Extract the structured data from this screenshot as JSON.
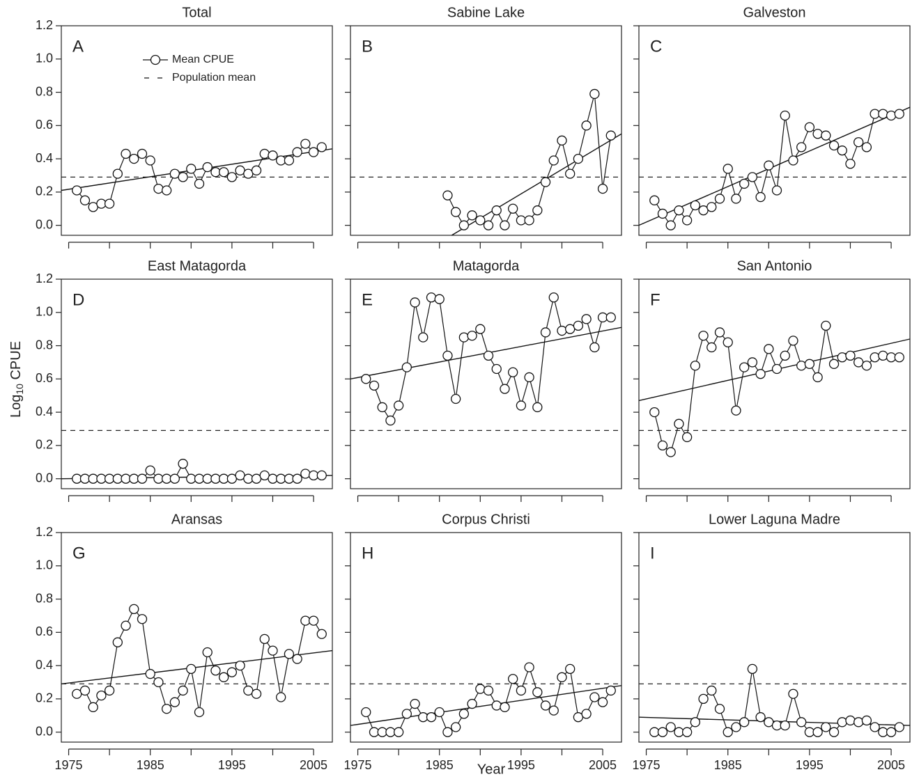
{
  "xlabel": "Year",
  "ylabel": {
    "text": "Log",
    "sub": "10",
    "rest": " CPUE"
  },
  "chart_data": [
    {
      "type": "line",
      "title": "Total",
      "label": "A",
      "legend": "upper-left",
      "x": [
        1976,
        1977,
        1978,
        1979,
        1980,
        1981,
        1982,
        1983,
        1984,
        1985,
        1986,
        1987,
        1988,
        1989,
        1990,
        1991,
        1992,
        1993,
        1994,
        1995,
        1996,
        1997,
        1998,
        1999,
        2000,
        2001,
        2002,
        2003,
        2004,
        2005,
        2006
      ],
      "series": [
        {
          "name": "Mean CPUE",
          "values": [
            0.21,
            0.15,
            0.11,
            0.13,
            0.13,
            0.31,
            0.43,
            0.4,
            0.43,
            0.39,
            0.22,
            0.21,
            0.31,
            0.29,
            0.34,
            0.25,
            0.35,
            0.32,
            0.32,
            0.29,
            0.33,
            0.31,
            0.33,
            0.43,
            0.42,
            0.39,
            0.39,
            0.44,
            0.49,
            0.44,
            0.47
          ]
        }
      ],
      "trend": {
        "x": [
          1974.1,
          2007.3
        ],
        "values": [
          0.21,
          0.46
        ]
      },
      "reference_line": {
        "name": "Population mean",
        "value": 0.29
      },
      "xlim": [
        1974.1,
        2007.3
      ],
      "ylim": [
        -0.06,
        1.2
      ],
      "xticks": [
        1975,
        1985,
        1995,
        2005
      ],
      "xminor": [
        1980,
        1990,
        2000
      ],
      "yticks": [
        {
          "value": 0,
          "label": "0.0"
        },
        0.2,
        0.4,
        0.6,
        0.8,
        {
          "value": 1,
          "label": "1.0"
        },
        1.2
      ]
    },
    {
      "type": "line",
      "title": "Sabine Lake",
      "label": "B",
      "x": [
        1986,
        1987,
        1988,
        1989,
        1990,
        1991,
        1992,
        1993,
        1994,
        1995,
        1996,
        1997,
        1998,
        1999,
        2000,
        2001,
        2002,
        2003,
        2004,
        2005,
        2006
      ],
      "series": [
        {
          "values": [
            0.18,
            0.08,
            0,
            0.06,
            0.03,
            0,
            0.09,
            0,
            0.1,
            0.03,
            0.03,
            0.09,
            0.26,
            0.39,
            0.51,
            0.31,
            0.4,
            0.6,
            0.79,
            0.22,
            0.54
          ]
        }
      ],
      "trend": {
        "x": [
          1986.5,
          2007.3
        ],
        "values": [
          -0.06,
          0.55
        ]
      },
      "reference_line": {
        "value": 0.29
      },
      "xlim": [
        1974.1,
        2007.3
      ],
      "ylim": [
        -0.06,
        1.2
      ],
      "xticks": [
        1975,
        1985,
        1995,
        2005
      ],
      "xminor": [
        1980,
        1990,
        2000
      ],
      "yticks": [
        {
          "value": 0,
          "label": "0.0"
        },
        0.2,
        0.4,
        0.6,
        0.8,
        {
          "value": 1,
          "label": "1.0"
        },
        1.2
      ]
    },
    {
      "type": "line",
      "title": "Galveston",
      "label": "C",
      "x": [
        1976,
        1977,
        1978,
        1979,
        1980,
        1981,
        1982,
        1983,
        1984,
        1985,
        1986,
        1987,
        1988,
        1989,
        1990,
        1991,
        1992,
        1993,
        1994,
        1995,
        1996,
        1997,
        1998,
        1999,
        2000,
        2001,
        2002,
        2003,
        2004,
        2005,
        2006
      ],
      "series": [
        {
          "values": [
            0.15,
            0.07,
            0,
            0.09,
            0.03,
            0.12,
            0.09,
            0.11,
            0.16,
            0.34,
            0.16,
            0.25,
            0.29,
            0.17,
            0.36,
            0.21,
            0.66,
            0.39,
            0.47,
            0.59,
            0.55,
            0.54,
            0.48,
            0.45,
            0.37,
            0.5,
            0.47,
            0.67,
            0.67,
            0.66,
            0.67
          ]
        }
      ],
      "trend": {
        "x": [
          1974.1,
          2007.3
        ],
        "values": [
          0,
          0.71
        ]
      },
      "reference_line": {
        "value": 0.29
      },
      "xlim": [
        1974.1,
        2007.3
      ],
      "ylim": [
        -0.06,
        1.2
      ],
      "xticks": [
        1975,
        1985,
        1995,
        2005
      ],
      "xminor": [
        1980,
        1990,
        2000
      ],
      "yticks": [
        {
          "value": 0,
          "label": "0.0"
        },
        0.2,
        0.4,
        0.6,
        0.8,
        {
          "value": 1,
          "label": "1.0"
        },
        1.2
      ]
    },
    {
      "type": "line",
      "title": "East Matagorda",
      "label": "D",
      "x": [
        1976,
        1977,
        1978,
        1979,
        1980,
        1981,
        1982,
        1983,
        1984,
        1985,
        1986,
        1987,
        1988,
        1989,
        1990,
        1991,
        1992,
        1993,
        1994,
        1995,
        1996,
        1997,
        1998,
        1999,
        2000,
        2001,
        2002,
        2003,
        2004,
        2005,
        2006
      ],
      "series": [
        {
          "values": [
            0,
            0,
            0,
            0,
            0,
            0,
            0,
            0,
            0,
            0.05,
            0,
            0,
            0,
            0.09,
            0,
            0,
            0,
            0,
            0,
            0,
            0.02,
            0,
            0,
            0.02,
            0,
            0,
            0,
            0,
            0.03,
            0.02,
            0.02
          ]
        }
      ],
      "trend": {
        "x": [
          1974.1,
          2007.3
        ],
        "values": [
          0,
          0.02
        ]
      },
      "reference_line": {
        "value": 0.29
      },
      "xlim": [
        1974.1,
        2007.3
      ],
      "ylim": [
        -0.06,
        1.2
      ],
      "xticks": [
        1975,
        1985,
        1995,
        2005
      ],
      "xminor": [
        1980,
        1990,
        2000
      ],
      "yticks": [
        {
          "value": 0,
          "label": "0.0"
        },
        0.2,
        0.4,
        0.6,
        0.8,
        {
          "value": 1,
          "label": "1.0"
        },
        1.2
      ]
    },
    {
      "type": "line",
      "title": "Matagorda",
      "label": "E",
      "x": [
        1976,
        1977,
        1978,
        1979,
        1980,
        1981,
        1982,
        1983,
        1984,
        1985,
        1986,
        1987,
        1988,
        1989,
        1990,
        1991,
        1992,
        1993,
        1994,
        1995,
        1996,
        1997,
        1998,
        1999,
        2000,
        2001,
        2002,
        2003,
        2004,
        2005,
        2006
      ],
      "series": [
        {
          "values": [
            0.6,
            0.56,
            0.43,
            0.35,
            0.44,
            0.67,
            1.06,
            0.85,
            1.09,
            1.08,
            0.74,
            0.48,
            0.85,
            0.86,
            0.9,
            0.74,
            0.66,
            0.54,
            0.64,
            0.44,
            0.61,
            0.43,
            0.88,
            1.09,
            0.89,
            0.9,
            0.92,
            0.96,
            0.79,
            0.97,
            0.97
          ]
        }
      ],
      "trend": {
        "x": [
          1974.1,
          2007.3
        ],
        "values": [
          0.6,
          0.91
        ]
      },
      "reference_line": {
        "value": 0.29
      },
      "xlim": [
        1974.1,
        2007.3
      ],
      "ylim": [
        -0.06,
        1.2
      ],
      "xticks": [
        1975,
        1985,
        1995,
        2005
      ],
      "xminor": [
        1980,
        1990,
        2000
      ],
      "yticks": [
        {
          "value": 0,
          "label": "0.0"
        },
        0.2,
        0.4,
        0.6,
        0.8,
        {
          "value": 1,
          "label": "1.0"
        },
        1.2
      ]
    },
    {
      "type": "line",
      "title": "San Antonio",
      "label": "F",
      "x": [
        1976,
        1977,
        1978,
        1979,
        1980,
        1981,
        1982,
        1983,
        1984,
        1985,
        1986,
        1987,
        1988,
        1989,
        1990,
        1991,
        1992,
        1993,
        1994,
        1995,
        1996,
        1997,
        1998,
        1999,
        2000,
        2001,
        2002,
        2003,
        2004,
        2005,
        2006
      ],
      "series": [
        {
          "values": [
            0.4,
            0.2,
            0.16,
            0.33,
            0.25,
            0.68,
            0.86,
            0.79,
            0.88,
            0.82,
            0.41,
            0.67,
            0.7,
            0.63,
            0.78,
            0.66,
            0.74,
            0.83,
            0.68,
            0.69,
            0.61,
            0.92,
            0.69,
            0.73,
            0.74,
            0.7,
            0.68,
            0.73,
            0.74,
            0.73,
            0.73
          ]
        }
      ],
      "trend": {
        "x": [
          1974.1,
          2007.3
        ],
        "values": [
          0.47,
          0.84
        ]
      },
      "reference_line": {
        "value": 0.29
      },
      "xlim": [
        1974.1,
        2007.3
      ],
      "ylim": [
        -0.06,
        1.2
      ],
      "xticks": [
        1975,
        1985,
        1995,
        2005
      ],
      "xminor": [
        1980,
        1990,
        2000
      ],
      "yticks": [
        {
          "value": 0,
          "label": "0.0"
        },
        0.2,
        0.4,
        0.6,
        0.8,
        {
          "value": 1,
          "label": "1.0"
        },
        1.2
      ]
    },
    {
      "type": "line",
      "title": "Aransas",
      "label": "G",
      "x": [
        1976,
        1977,
        1978,
        1979,
        1980,
        1981,
        1982,
        1983,
        1984,
        1985,
        1986,
        1987,
        1988,
        1989,
        1990,
        1991,
        1992,
        1993,
        1994,
        1995,
        1996,
        1997,
        1998,
        1999,
        2000,
        2001,
        2002,
        2003,
        2004,
        2005,
        2006
      ],
      "series": [
        {
          "values": [
            0.23,
            0.25,
            0.15,
            0.22,
            0.25,
            0.54,
            0.64,
            0.74,
            0.68,
            0.35,
            0.3,
            0.14,
            0.18,
            0.25,
            0.38,
            0.12,
            0.48,
            0.37,
            0.33,
            0.36,
            0.4,
            0.25,
            0.23,
            0.56,
            0.49,
            0.21,
            0.47,
            0.44,
            0.67,
            0.67,
            0.59
          ]
        }
      ],
      "trend": {
        "x": [
          1974.1,
          2007.3
        ],
        "values": [
          0.29,
          0.49
        ]
      },
      "reference_line": {
        "value": 0.29
      },
      "xlim": [
        1974.1,
        2007.3
      ],
      "ylim": [
        -0.06,
        1.2
      ],
      "xticks": [
        1975,
        1985,
        1995,
        2005
      ],
      "xminor": [
        1980,
        1990,
        2000
      ],
      "yticks": [
        {
          "value": 0,
          "label": "0.0"
        },
        0.2,
        0.4,
        0.6,
        0.8,
        {
          "value": 1,
          "label": "1.0"
        },
        1.2
      ]
    },
    {
      "type": "line",
      "title": "Corpus Christi",
      "label": "H",
      "x": [
        1976,
        1977,
        1978,
        1979,
        1980,
        1981,
        1982,
        1983,
        1984,
        1985,
        1986,
        1987,
        1988,
        1989,
        1990,
        1991,
        1992,
        1993,
        1994,
        1995,
        1996,
        1997,
        1998,
        1999,
        2000,
        2001,
        2002,
        2003,
        2004,
        2005,
        2006
      ],
      "series": [
        {
          "values": [
            0.12,
            0,
            0,
            0,
            0,
            0.11,
            0.17,
            0.09,
            0.09,
            0.12,
            0,
            0.03,
            0.11,
            0.17,
            0.26,
            0.25,
            0.16,
            0.15,
            0.32,
            0.25,
            0.39,
            0.24,
            0.16,
            0.13,
            0.33,
            0.38,
            0.09,
            0.11,
            0.21,
            0.18,
            0.25
          ]
        }
      ],
      "trend": {
        "x": [
          1974.1,
          2007.3
        ],
        "values": [
          0.04,
          0.28
        ]
      },
      "reference_line": {
        "value": 0.29
      },
      "xlim": [
        1974.1,
        2007.3
      ],
      "ylim": [
        -0.06,
        1.2
      ],
      "xticks": [
        1975,
        1985,
        1995,
        2005
      ],
      "xminor": [
        1980,
        1990,
        2000
      ],
      "yticks": [
        {
          "value": 0,
          "label": "0.0"
        },
        0.2,
        0.4,
        0.6,
        0.8,
        {
          "value": 1,
          "label": "1.0"
        },
        1.2
      ]
    },
    {
      "type": "line",
      "title": "Lower Laguna Madre",
      "label": "I",
      "x": [
        1976,
        1977,
        1978,
        1979,
        1980,
        1981,
        1982,
        1983,
        1984,
        1985,
        1986,
        1987,
        1988,
        1989,
        1990,
        1991,
        1992,
        1993,
        1994,
        1995,
        1996,
        1997,
        1998,
        1999,
        2000,
        2001,
        2002,
        2003,
        2004,
        2005,
        2006
      ],
      "series": [
        {
          "values": [
            0,
            0,
            0.03,
            0,
            0,
            0.06,
            0.2,
            0.25,
            0.14,
            0,
            0.03,
            0.06,
            0.38,
            0.09,
            0.06,
            0.04,
            0.04,
            0.23,
            0.06,
            0,
            0,
            0.03,
            0,
            0.06,
            0.07,
            0.06,
            0.07,
            0.03,
            0,
            0,
            0.03
          ]
        }
      ],
      "trend": {
        "x": [
          1974.1,
          2007.3
        ],
        "values": [
          0.09,
          0.04
        ]
      },
      "reference_line": {
        "value": 0.29
      },
      "xlim": [
        1974.1,
        2007.3
      ],
      "ylim": [
        -0.06,
        1.2
      ],
      "xticks": [
        1975,
        1985,
        1995,
        2005
      ],
      "xminor": [
        1980,
        1990,
        2000
      ],
      "yticks": [
        {
          "value": 0,
          "label": "0.0"
        },
        0.2,
        0.4,
        0.6,
        0.8,
        {
          "value": 1,
          "label": "1.0"
        },
        1.2
      ]
    }
  ]
}
